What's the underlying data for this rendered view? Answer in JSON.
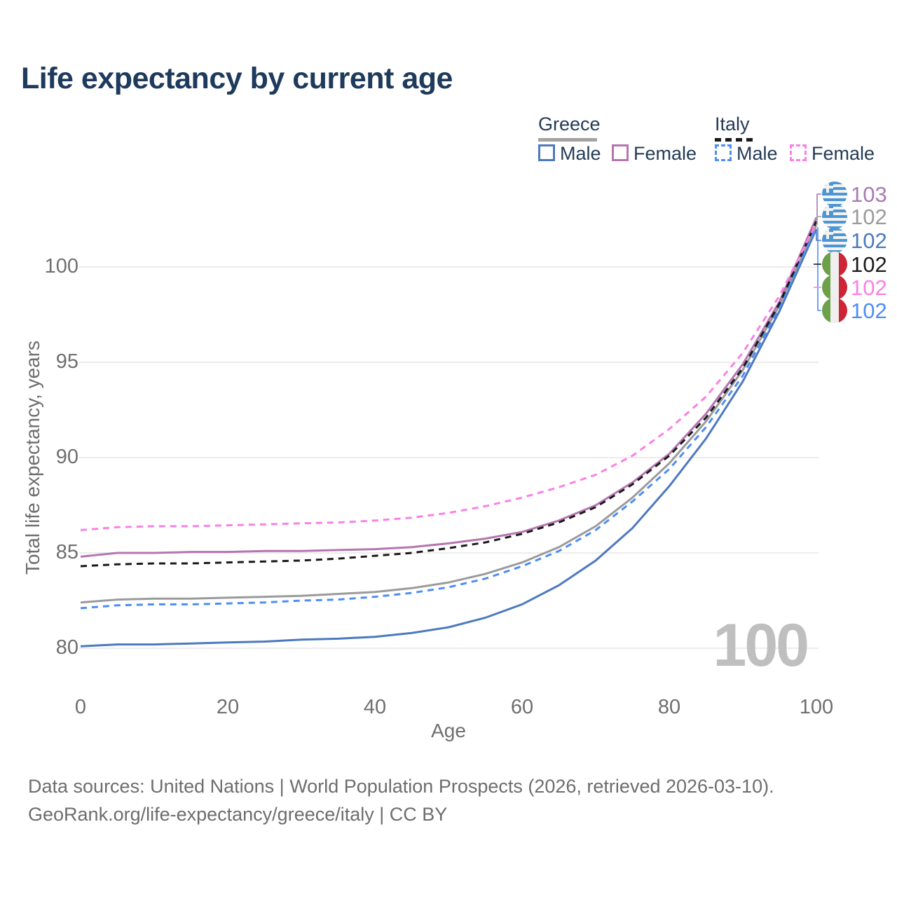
{
  "title": "Life expectancy by current age",
  "watermark": "100",
  "legend": {
    "greece": {
      "label": "Greece",
      "male_label": "Male",
      "female_label": "Female",
      "header_line_color": "#a3a3a3",
      "male_color": "#4d79c0",
      "female_color": "#b576b0"
    },
    "italy": {
      "label": "Italy",
      "male_label": "Male",
      "female_label": "Female",
      "header_line_color": "#1a1a1a",
      "male_color": "#4d8df5",
      "female_color": "#fb80e5"
    }
  },
  "footer": {
    "line1": "Data sources: United Nations | World Population Prospects (2026, retrieved 2026-03-10).",
    "line2": "GeoRank.org/life-expectancy/greece/italy | CC BY"
  },
  "chart_data": {
    "type": "line",
    "title": "Life expectancy by current age",
    "xlabel": "Age",
    "ylabel": "Total life expectancy, years",
    "x": [
      0,
      5,
      10,
      15,
      20,
      25,
      30,
      35,
      40,
      45,
      50,
      55,
      60,
      65,
      70,
      75,
      80,
      85,
      90,
      95,
      100
    ],
    "x_ticks": [
      0,
      20,
      40,
      60,
      80,
      100
    ],
    "y_ticks": [
      80,
      85,
      90,
      95,
      100
    ],
    "xlim": [
      0,
      100
    ],
    "ylim": [
      78.8,
      104.5
    ],
    "grid": "horizontal-only",
    "legend_position": "top-right",
    "gridline_color": "#ececec",
    "watermark_color": "#bfbfbf",
    "series": [
      {
        "id": "greece-male",
        "name": "Greece Male",
        "color": "#4d79c0",
        "dash": false,
        "values": [
          80.1,
          80.2,
          80.2,
          80.25,
          80.3,
          80.35,
          80.45,
          80.5,
          80.6,
          80.8,
          81.1,
          81.6,
          82.3,
          83.3,
          84.6,
          86.3,
          88.5,
          91.0,
          94.0,
          97.7,
          102.0
        ]
      },
      {
        "id": "greece-both",
        "name": "Greece (both sexes)",
        "color": "#9b9b9b",
        "dash": false,
        "values": [
          82.4,
          82.55,
          82.6,
          82.6,
          82.65,
          82.7,
          82.75,
          82.85,
          82.95,
          83.15,
          83.45,
          83.9,
          84.5,
          85.3,
          86.4,
          87.9,
          89.7,
          91.9,
          94.6,
          98.0,
          102.2
        ]
      },
      {
        "id": "greece-female",
        "name": "Greece Female",
        "color": "#b576b0",
        "dash": false,
        "values": [
          84.8,
          85.0,
          85.0,
          85.05,
          85.05,
          85.1,
          85.1,
          85.15,
          85.2,
          85.3,
          85.5,
          85.75,
          86.1,
          86.7,
          87.5,
          88.7,
          90.2,
          92.3,
          94.9,
          98.2,
          102.6
        ]
      },
      {
        "id": "italy-male",
        "name": "Italy Male",
        "color": "#4d8df5",
        "dash": true,
        "values": [
          82.1,
          82.25,
          82.3,
          82.3,
          82.35,
          82.4,
          82.5,
          82.55,
          82.7,
          82.9,
          83.2,
          83.65,
          84.3,
          85.1,
          86.2,
          87.7,
          89.4,
          91.6,
          94.3,
          97.9,
          102.1
        ]
      },
      {
        "id": "italy-both",
        "name": "Italy (both sexes)",
        "color": "#1a1a1a",
        "dash": true,
        "values": [
          84.3,
          84.4,
          84.45,
          84.45,
          84.5,
          84.55,
          84.6,
          84.7,
          84.85,
          85.0,
          85.25,
          85.55,
          86.0,
          86.6,
          87.4,
          88.6,
          90.1,
          92.1,
          94.7,
          98.1,
          102.4
        ]
      },
      {
        "id": "italy-female",
        "name": "Italy Female",
        "color": "#fb80e5",
        "dash": true,
        "values": [
          86.2,
          86.35,
          86.4,
          86.4,
          86.45,
          86.5,
          86.55,
          86.6,
          86.7,
          86.85,
          87.1,
          87.45,
          87.9,
          88.45,
          89.1,
          90.1,
          91.5,
          93.2,
          95.5,
          98.5,
          102.3
        ]
      }
    ],
    "end_labels": [
      {
        "value": "103",
        "flag": "greece",
        "color": "#a87ab5",
        "series": "greece-female"
      },
      {
        "value": "102",
        "flag": "greece",
        "color": "#9b9b9b",
        "series": "greece-both"
      },
      {
        "value": "102",
        "flag": "greece",
        "color": "#4d79c0",
        "series": "greece-male"
      },
      {
        "value": "102",
        "flag": "italy",
        "color": "#1a1a1a",
        "series": "italy-both"
      },
      {
        "value": "102",
        "flag": "italy",
        "color": "#fb80e5",
        "series": "italy-female"
      },
      {
        "value": "102",
        "flag": "italy",
        "color": "#4d8df5",
        "series": "italy-male"
      }
    ]
  }
}
